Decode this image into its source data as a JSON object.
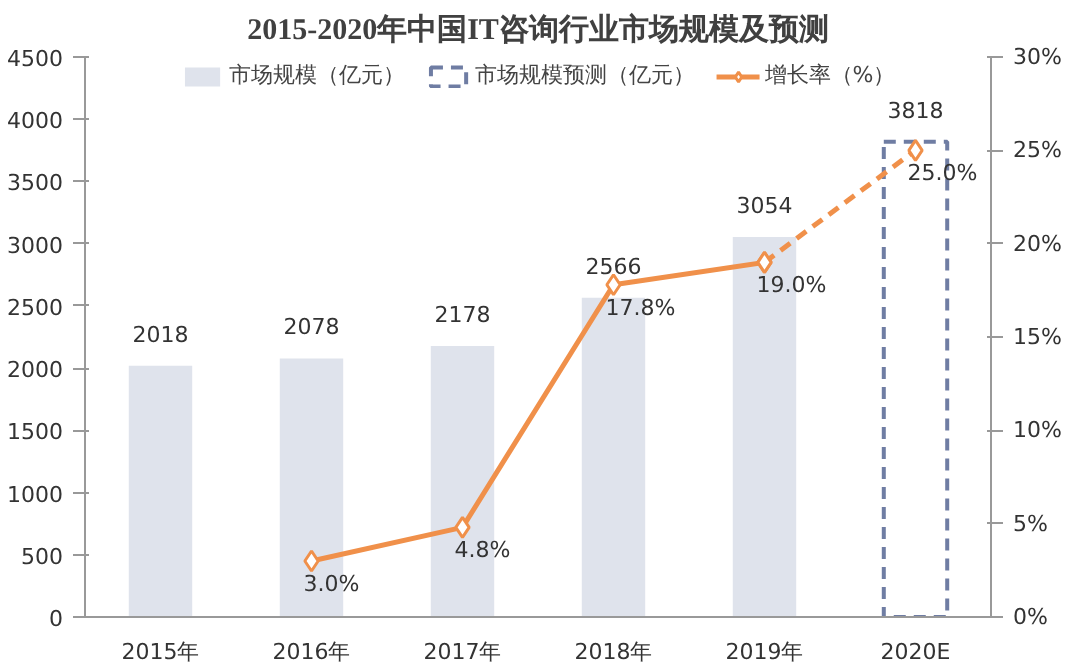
{
  "chart_data": {
    "type": "bar",
    "title": "2015-2020年中国IT咨询行业市场规模及预测",
    "categories": [
      "2015年",
      "2016年",
      "2017年",
      "2018年",
      "2019年",
      "2020E"
    ],
    "series": [
      {
        "name": "市场规模（亿元）",
        "color": "#dfe3ec",
        "values": [
          2018,
          2078,
          2178,
          2566,
          3054,
          null
        ],
        "value_labels": [
          "2018",
          "2078",
          "2178",
          "2566",
          "3054",
          null
        ]
      },
      {
        "name": "市场规模预测（亿元）",
        "color": "#6f7da3",
        "line_style": "dashed",
        "values": [
          null,
          null,
          null,
          null,
          null,
          3818
        ],
        "value_labels": [
          null,
          null,
          null,
          null,
          null,
          "3818"
        ]
      },
      {
        "name": "增长率（%）",
        "type": "line",
        "axis": "y2",
        "color": "#f0904a",
        "marker": "diamond",
        "line_style": "solid",
        "values": [
          null,
          3.0,
          4.8,
          17.8,
          19.0,
          null
        ],
        "value_labels": [
          null,
          "3.0%",
          "4.8%",
          "17.8%",
          "19.0%",
          null
        ]
      },
      {
        "type": "line",
        "axis": "y2",
        "color": "#f0904a",
        "marker": "diamond",
        "line_style": "dashed",
        "values": [
          null,
          null,
          null,
          null,
          19.0,
          25.0
        ],
        "value_labels": [
          null,
          null,
          null,
          null,
          null,
          "25.0%"
        ]
      }
    ],
    "ylim": [
      0,
      4500
    ],
    "yticks": [
      0,
      500,
      1000,
      1500,
      2000,
      2500,
      3000,
      3500,
      4000,
      4500
    ],
    "y2lim": [
      0,
      30
    ],
    "y2ticks": [
      {
        "value": 0,
        "label": "0%"
      },
      {
        "value": 5,
        "label": "5%"
      },
      {
        "value": 10,
        "label": "10%"
      },
      {
        "value": 15,
        "label": "15%"
      },
      {
        "value": 20,
        "label": "20%"
      },
      {
        "value": 25,
        "label": "25%"
      },
      {
        "value": 30,
        "label": "30%"
      }
    ],
    "legend": "top"
  }
}
